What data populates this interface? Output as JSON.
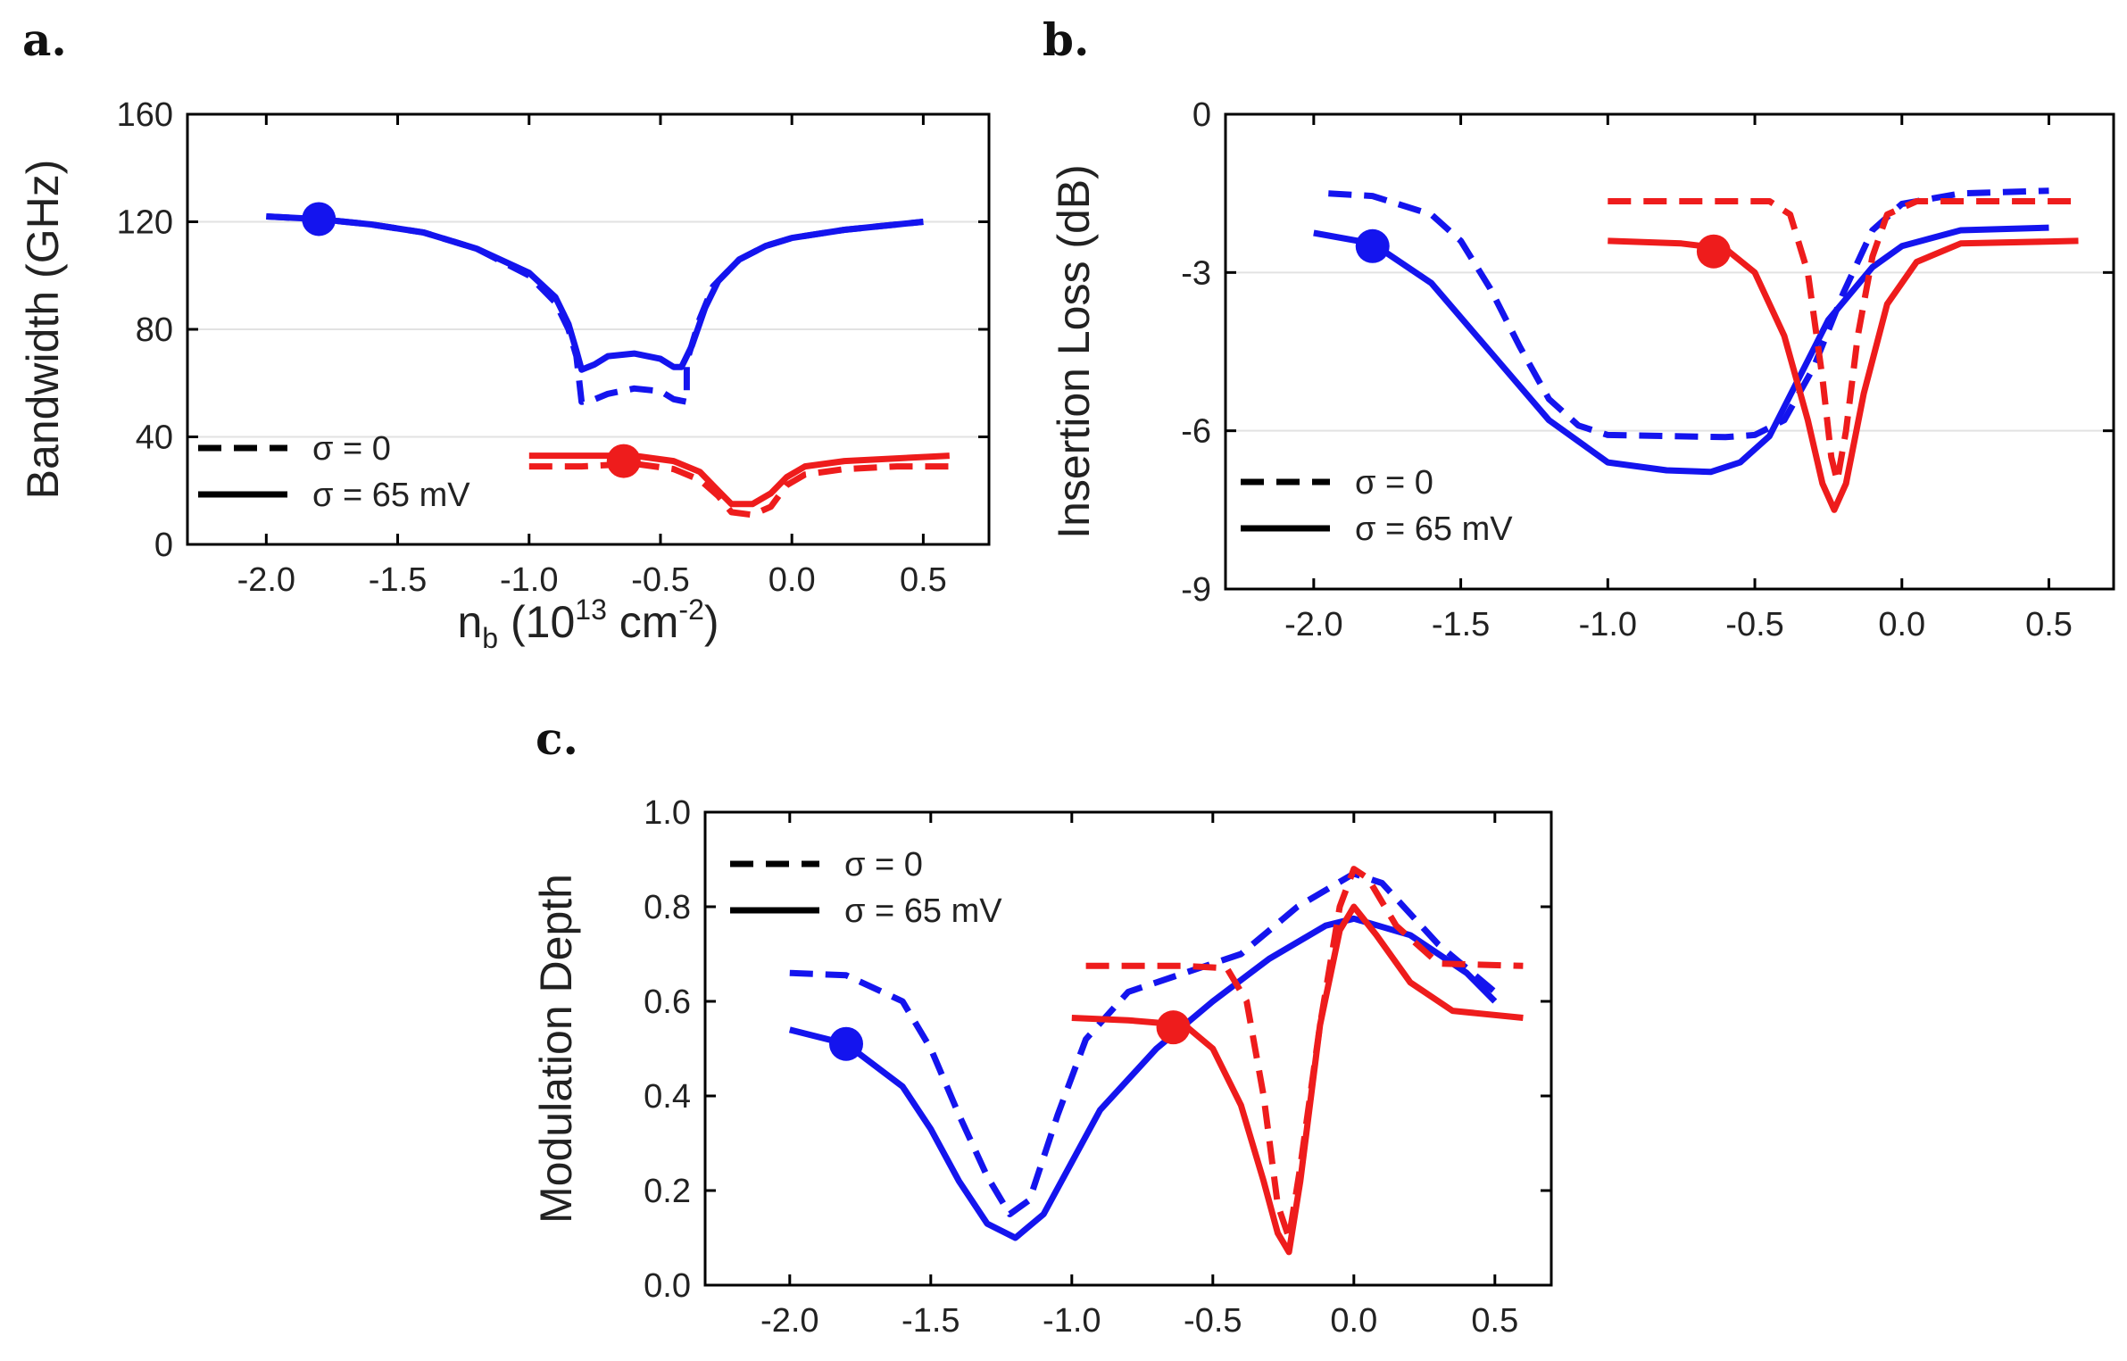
{
  "panels": {
    "a": {
      "label": "a."
    },
    "b": {
      "label": "b."
    },
    "c": {
      "label": "c."
    }
  },
  "colors": {
    "blue": "#1414ee",
    "red": "#ee1c1c",
    "black": "#000000"
  },
  "chart_data": [
    {
      "id": "a",
      "type": "line",
      "title": "",
      "xlabel": "n",
      "xlabel_sub": "b",
      "xlabel_rest": " (10",
      "xlabel_sup": "13",
      "xlabel_unit": " cm",
      "xlabel_unit_sup": "-2",
      "xlabel_close": ")",
      "ylabel": "Bandwidth (GHz)",
      "xlim": [
        -2.3,
        0.75
      ],
      "ylim": [
        0,
        160
      ],
      "xticks": [
        -2.0,
        -1.5,
        -1.0,
        -0.5,
        0.0,
        0.5
      ],
      "xtick_labels": [
        "-2.0",
        "-1.5",
        "-1.0",
        "-0.5",
        "0.0",
        "0.5"
      ],
      "yticks": [
        0,
        40,
        80,
        120,
        160
      ],
      "ytick_labels": [
        "0",
        "40",
        "80",
        "120",
        "160"
      ],
      "grid_y": [
        40,
        80,
        120
      ],
      "legend": [
        {
          "label": "σ = 0",
          "style": "dashed"
        },
        {
          "label": "σ = 65 mV",
          "style": "solid"
        }
      ],
      "series": [
        {
          "name": "blue σ = 0",
          "color": "blue",
          "style": "dashed",
          "points": [
            [
              -2.0,
              122
            ],
            [
              -1.8,
              121
            ],
            [
              -1.6,
              119
            ],
            [
              -1.4,
              116
            ],
            [
              -1.2,
              110
            ],
            [
              -1.0,
              100
            ],
            [
              -0.9,
              90
            ],
            [
              -0.85,
              80
            ],
            [
              -0.82,
              70
            ],
            [
              -0.8,
              53
            ],
            [
              -0.75,
              54
            ],
            [
              -0.7,
              56
            ],
            [
              -0.6,
              58
            ],
            [
              -0.5,
              57
            ],
            [
              -0.45,
              54
            ],
            [
              -0.4,
              53
            ],
            [
              -0.4,
              68
            ],
            [
              -0.35,
              84
            ],
            [
              -0.3,
              96
            ],
            [
              -0.2,
              106
            ],
            [
              -0.1,
              111
            ],
            [
              0.0,
              114
            ],
            [
              0.2,
              117
            ],
            [
              0.4,
              119
            ],
            [
              0.5,
              120
            ]
          ]
        },
        {
          "name": "blue σ = 65 mV",
          "color": "blue",
          "style": "solid",
          "points": [
            [
              -2.0,
              122
            ],
            [
              -1.8,
              121
            ],
            [
              -1.6,
              119
            ],
            [
              -1.4,
              116
            ],
            [
              -1.2,
              110
            ],
            [
              -1.0,
              101
            ],
            [
              -0.9,
              92
            ],
            [
              -0.85,
              82
            ],
            [
              -0.82,
              72
            ],
            [
              -0.8,
              65
            ],
            [
              -0.75,
              67
            ],
            [
              -0.7,
              70
            ],
            [
              -0.6,
              71
            ],
            [
              -0.5,
              69
            ],
            [
              -0.45,
              66
            ],
            [
              -0.42,
              66
            ],
            [
              -0.38,
              74
            ],
            [
              -0.33,
              88
            ],
            [
              -0.28,
              98
            ],
            [
              -0.2,
              106
            ],
            [
              -0.1,
              111
            ],
            [
              0.0,
              114
            ],
            [
              0.2,
              117
            ],
            [
              0.4,
              119
            ],
            [
              0.5,
              120
            ]
          ]
        },
        {
          "name": "red σ = 0",
          "color": "red",
          "style": "dashed",
          "points": [
            [
              -1.0,
              29
            ],
            [
              -0.8,
              29
            ],
            [
              -0.6,
              30
            ],
            [
              -0.45,
              28
            ],
            [
              -0.35,
              24
            ],
            [
              -0.28,
              18
            ],
            [
              -0.23,
              12
            ],
            [
              -0.15,
              11
            ],
            [
              -0.08,
              14
            ],
            [
              -0.02,
              22
            ],
            [
              0.05,
              26
            ],
            [
              0.2,
              28
            ],
            [
              0.4,
              29
            ],
            [
              0.6,
              29
            ]
          ]
        },
        {
          "name": "red σ = 65 mV",
          "color": "red",
          "style": "solid",
          "points": [
            [
              -1.0,
              33
            ],
            [
              -0.8,
              33
            ],
            [
              -0.6,
              33
            ],
            [
              -0.45,
              31
            ],
            [
              -0.35,
              27
            ],
            [
              -0.28,
              20
            ],
            [
              -0.23,
              15
            ],
            [
              -0.15,
              15
            ],
            [
              -0.08,
              19
            ],
            [
              -0.02,
              25
            ],
            [
              0.05,
              29
            ],
            [
              0.2,
              31
            ],
            [
              0.4,
              32
            ],
            [
              0.6,
              33
            ]
          ]
        }
      ],
      "markers": [
        {
          "color": "blue",
          "x": -1.8,
          "y": 121
        },
        {
          "color": "red",
          "x": -0.64,
          "y": 31
        }
      ]
    },
    {
      "id": "b",
      "type": "line",
      "title": "",
      "xlabel": "",
      "ylabel": "Insertion Loss (dB)",
      "xlim": [
        -2.3,
        0.72
      ],
      "ylim": [
        -9,
        0
      ],
      "xticks": [
        -2.0,
        -1.5,
        -1.0,
        -0.5,
        0.0,
        0.5
      ],
      "xtick_labels": [
        "-2.0",
        "-1.5",
        "-1.0",
        "-0.5",
        "0.0",
        "0.5"
      ],
      "yticks": [
        -9,
        -6,
        -3,
        0
      ],
      "ytick_labels": [
        "-9",
        "-6",
        "-3",
        "0"
      ],
      "grid_y": [
        -6,
        -3
      ],
      "legend": [
        {
          "label": "σ = 0",
          "style": "dashed"
        },
        {
          "label": "σ = 65 mV",
          "style": "solid"
        }
      ],
      "series": [
        {
          "name": "blue σ = 0",
          "color": "blue",
          "style": "dashed",
          "points": [
            [
              -1.95,
              -1.5
            ],
            [
              -1.8,
              -1.55
            ],
            [
              -1.6,
              -1.9
            ],
            [
              -1.5,
              -2.4
            ],
            [
              -1.4,
              -3.3
            ],
            [
              -1.3,
              -4.4
            ],
            [
              -1.2,
              -5.4
            ],
            [
              -1.1,
              -5.9
            ],
            [
              -1.0,
              -6.08
            ],
            [
              -0.8,
              -6.1
            ],
            [
              -0.6,
              -6.12
            ],
            [
              -0.5,
              -6.08
            ],
            [
              -0.4,
              -5.8
            ],
            [
              -0.3,
              -4.8
            ],
            [
              -0.2,
              -3.4
            ],
            [
              -0.1,
              -2.2
            ],
            [
              0.0,
              -1.7
            ],
            [
              0.2,
              -1.5
            ],
            [
              0.5,
              -1.45
            ]
          ]
        },
        {
          "name": "blue σ = 65 mV",
          "color": "blue",
          "style": "solid",
          "points": [
            [
              -2.0,
              -2.25
            ],
            [
              -1.8,
              -2.45
            ],
            [
              -1.6,
              -3.2
            ],
            [
              -1.4,
              -4.5
            ],
            [
              -1.2,
              -5.8
            ],
            [
              -1.0,
              -6.6
            ],
            [
              -0.8,
              -6.75
            ],
            [
              -0.65,
              -6.78
            ],
            [
              -0.55,
              -6.6
            ],
            [
              -0.45,
              -6.1
            ],
            [
              -0.35,
              -5.0
            ],
            [
              -0.25,
              -3.9
            ],
            [
              -0.1,
              -2.9
            ],
            [
              0.0,
              -2.5
            ],
            [
              0.2,
              -2.2
            ],
            [
              0.5,
              -2.15
            ]
          ]
        },
        {
          "name": "red σ = 0",
          "color": "red",
          "style": "dashed",
          "points": [
            [
              -1.0,
              -1.65
            ],
            [
              -0.6,
              -1.65
            ],
            [
              -0.45,
              -1.65
            ],
            [
              -0.38,
              -1.9
            ],
            [
              -0.32,
              -3.0
            ],
            [
              -0.27,
              -5.0
            ],
            [
              -0.24,
              -6.5
            ],
            [
              -0.22,
              -6.95
            ],
            [
              -0.19,
              -6.0
            ],
            [
              -0.15,
              -4.2
            ],
            [
              -0.1,
              -2.7
            ],
            [
              -0.05,
              -1.9
            ],
            [
              0.05,
              -1.65
            ],
            [
              0.6,
              -1.65
            ]
          ]
        },
        {
          "name": "red σ = 65 mV",
          "color": "red",
          "style": "solid",
          "points": [
            [
              -1.0,
              -2.4
            ],
            [
              -0.75,
              -2.45
            ],
            [
              -0.6,
              -2.55
            ],
            [
              -0.5,
              -3.0
            ],
            [
              -0.4,
              -4.2
            ],
            [
              -0.32,
              -5.8
            ],
            [
              -0.27,
              -7.0
            ],
            [
              -0.23,
              -7.5
            ],
            [
              -0.19,
              -7.0
            ],
            [
              -0.13,
              -5.3
            ],
            [
              -0.05,
              -3.6
            ],
            [
              0.05,
              -2.8
            ],
            [
              0.2,
              -2.45
            ],
            [
              0.6,
              -2.4
            ]
          ]
        }
      ],
      "markers": [
        {
          "color": "blue",
          "x": -1.8,
          "y": -2.5
        },
        {
          "color": "red",
          "x": -0.64,
          "y": -2.6
        }
      ]
    },
    {
      "id": "c",
      "type": "line",
      "title": "",
      "xlabel": "",
      "ylabel": "Modulation Depth",
      "xlim": [
        -2.3,
        0.7
      ],
      "ylim": [
        0.0,
        1.0
      ],
      "xticks": [
        -2.0,
        -1.5,
        -1.0,
        -0.5,
        0.0,
        0.5
      ],
      "xtick_labels": [
        "-2.0",
        "-1.5",
        "-1.0",
        "-0.5",
        "0.0",
        "0.5"
      ],
      "yticks": [
        0.0,
        0.2,
        0.4,
        0.6,
        0.8,
        1.0
      ],
      "ytick_labels": [
        "0.0",
        "0.2",
        "0.4",
        "0.6",
        "0.8",
        "1.0"
      ],
      "grid_y": [],
      "legend": [
        {
          "label": "σ = 0",
          "style": "dashed"
        },
        {
          "label": "σ = 65 mV",
          "style": "solid"
        }
      ],
      "series": [
        {
          "name": "blue σ = 0",
          "color": "blue",
          "style": "dashed",
          "points": [
            [
              -2.0,
              0.66
            ],
            [
              -1.8,
              0.655
            ],
            [
              -1.6,
              0.6
            ],
            [
              -1.5,
              0.5
            ],
            [
              -1.4,
              0.36
            ],
            [
              -1.3,
              0.23
            ],
            [
              -1.22,
              0.15
            ],
            [
              -1.15,
              0.18
            ],
            [
              -1.05,
              0.36
            ],
            [
              -0.95,
              0.52
            ],
            [
              -0.8,
              0.62
            ],
            [
              -0.6,
              0.66
            ],
            [
              -0.4,
              0.7
            ],
            [
              -0.2,
              0.8
            ],
            [
              0.0,
              0.87
            ],
            [
              0.1,
              0.85
            ],
            [
              0.3,
              0.72
            ],
            [
              0.5,
              0.62
            ]
          ]
        },
        {
          "name": "blue σ = 65 mV",
          "color": "blue",
          "style": "solid",
          "points": [
            [
              -2.0,
              0.54
            ],
            [
              -1.8,
              0.51
            ],
            [
              -1.6,
              0.42
            ],
            [
              -1.5,
              0.33
            ],
            [
              -1.4,
              0.22
            ],
            [
              -1.3,
              0.13
            ],
            [
              -1.2,
              0.1
            ],
            [
              -1.1,
              0.15
            ],
            [
              -1.0,
              0.26
            ],
            [
              -0.9,
              0.37
            ],
            [
              -0.7,
              0.5
            ],
            [
              -0.5,
              0.6
            ],
            [
              -0.3,
              0.69
            ],
            [
              -0.1,
              0.76
            ],
            [
              0.0,
              0.775
            ],
            [
              0.2,
              0.74
            ],
            [
              0.4,
              0.66
            ],
            [
              0.5,
              0.6
            ]
          ]
        },
        {
          "name": "red σ = 0",
          "color": "red",
          "style": "dashed",
          "points": [
            [
              -0.95,
              0.675
            ],
            [
              -0.6,
              0.675
            ],
            [
              -0.45,
              0.67
            ],
            [
              -0.38,
              0.6
            ],
            [
              -0.32,
              0.4
            ],
            [
              -0.27,
              0.17
            ],
            [
              -0.23,
              0.1
            ],
            [
              -0.19,
              0.25
            ],
            [
              -0.12,
              0.55
            ],
            [
              -0.05,
              0.8
            ],
            [
              0.0,
              0.88
            ],
            [
              0.05,
              0.86
            ],
            [
              0.15,
              0.76
            ],
            [
              0.3,
              0.68
            ],
            [
              0.6,
              0.675
            ]
          ]
        },
        {
          "name": "red σ = 65 mV",
          "color": "red",
          "style": "solid",
          "points": [
            [
              -1.0,
              0.565
            ],
            [
              -0.8,
              0.56
            ],
            [
              -0.6,
              0.55
            ],
            [
              -0.5,
              0.5
            ],
            [
              -0.4,
              0.38
            ],
            [
              -0.32,
              0.22
            ],
            [
              -0.27,
              0.11
            ],
            [
              -0.23,
              0.07
            ],
            [
              -0.19,
              0.22
            ],
            [
              -0.12,
              0.55
            ],
            [
              -0.05,
              0.75
            ],
            [
              0.0,
              0.8
            ],
            [
              0.08,
              0.74
            ],
            [
              0.2,
              0.64
            ],
            [
              0.35,
              0.58
            ],
            [
              0.6,
              0.565
            ]
          ]
        }
      ],
      "markers": [
        {
          "color": "blue",
          "x": -1.8,
          "y": 0.51
        },
        {
          "color": "red",
          "x": -0.64,
          "y": 0.545
        }
      ]
    }
  ]
}
